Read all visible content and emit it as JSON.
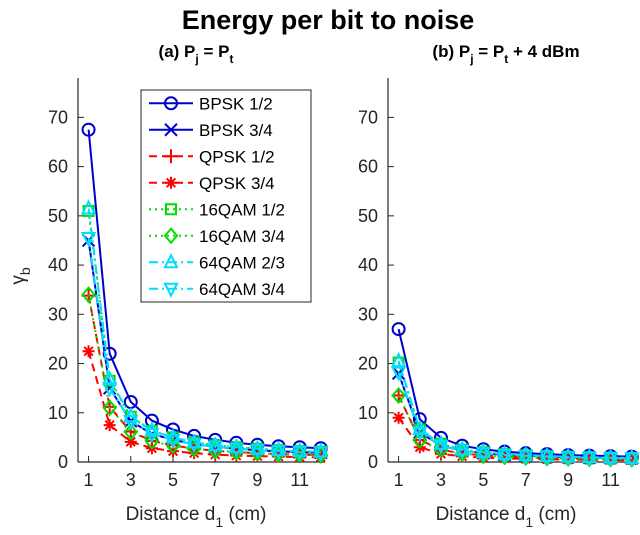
{
  "figure_title": "Energy per bit to noise",
  "chart_data": [
    {
      "type": "line",
      "title": "(a) P_j = P_t",
      "title_parts": {
        "a": "(a) P",
        "b": "j",
        "c": " = P",
        "d": "t"
      },
      "xlabel_parts": {
        "main": "Distance d",
        "sub": "1",
        "unit": " (cm)"
      },
      "ylabel_parts": {
        "main": "γ",
        "sub": "b"
      },
      "xlim": [
        0.5,
        12.2
      ],
      "ylim": [
        0,
        78
      ],
      "xticks": [
        1,
        3,
        5,
        7,
        9,
        11
      ],
      "yticks": [
        0,
        10,
        20,
        30,
        40,
        50,
        60,
        70
      ],
      "x": [
        1,
        2,
        3,
        4,
        5,
        6,
        7,
        8,
        9,
        10,
        11,
        12
      ],
      "legend_position": "top-right",
      "grid": false,
      "series": [
        {
          "name": "BPSK 1/2",
          "color": "#0000cc",
          "marker": "circle",
          "dash": "solid",
          "values": [
            67.5,
            22.0,
            12.2,
            8.4,
            6.6,
            5.3,
            4.5,
            3.9,
            3.5,
            3.2,
            3.0,
            2.8
          ]
        },
        {
          "name": "BPSK 3/4",
          "color": "#0000cc",
          "marker": "x",
          "dash": "solid",
          "values": [
            45.0,
            15.0,
            8.3,
            5.7,
            4.5,
            3.6,
            3.1,
            2.7,
            2.4,
            2.2,
            2.0,
            1.9
          ]
        },
        {
          "name": "QPSK 1/2",
          "color": "#ff0000",
          "marker": "plus",
          "dash": "dash",
          "values": [
            33.8,
            11.2,
            6.2,
            4.3,
            3.4,
            2.7,
            2.3,
            2.0,
            1.8,
            1.6,
            1.5,
            1.4
          ]
        },
        {
          "name": "QPSK 3/4",
          "color": "#ff0000",
          "marker": "asterisk",
          "dash": "dash",
          "values": [
            22.5,
            7.5,
            4.1,
            2.8,
            2.2,
            1.8,
            1.5,
            1.3,
            1.2,
            1.1,
            1.0,
            0.95
          ]
        },
        {
          "name": "16QAM 1/2",
          "color": "#00dd00",
          "marker": "square",
          "dash": "dot",
          "values": [
            51.0,
            16.5,
            9.2,
            6.3,
            5.0,
            4.0,
            3.4,
            3.0,
            2.7,
            2.4,
            2.2,
            2.1
          ]
        },
        {
          "name": "16QAM 3/4",
          "color": "#00dd00",
          "marker": "diamond",
          "dash": "dot",
          "values": [
            34.0,
            11.0,
            6.1,
            4.2,
            3.3,
            2.7,
            2.3,
            2.0,
            1.8,
            1.6,
            1.5,
            1.4
          ]
        },
        {
          "name": "64QAM 2/3",
          "color": "#00ddff",
          "marker": "triangle-up",
          "dash": "dashdot",
          "values": [
            51.5,
            16.8,
            9.3,
            6.4,
            5.0,
            4.0,
            3.4,
            3.0,
            2.7,
            2.4,
            2.2,
            2.1
          ]
        },
        {
          "name": "64QAM 3/4",
          "color": "#00ddff",
          "marker": "triangle-down",
          "dash": "dashdot",
          "values": [
            45.5,
            15.0,
            8.3,
            5.7,
            4.5,
            3.6,
            3.1,
            2.7,
            2.4,
            2.2,
            2.0,
            1.9
          ]
        }
      ]
    },
    {
      "type": "line",
      "title": "(b) P_j = P_t + 4 dBm",
      "title_parts": {
        "a": "(b) P",
        "b": "j",
        "c": " = P",
        "d": "t",
        "e": " + 4 dBm"
      },
      "xlabel_parts": {
        "main": "Distance d",
        "sub": "1",
        "unit": " (cm)"
      },
      "xlim": [
        0.5,
        12.2
      ],
      "ylim": [
        0,
        78
      ],
      "xticks": [
        1,
        3,
        5,
        7,
        9,
        11
      ],
      "yticks": [
        0,
        10,
        20,
        30,
        40,
        50,
        60,
        70
      ],
      "x": [
        1,
        2,
        3,
        4,
        5,
        6,
        7,
        8,
        9,
        10,
        11,
        12
      ],
      "grid": false,
      "series": [
        {
          "name": "BPSK 1/2",
          "color": "#0000cc",
          "marker": "circle",
          "dash": "solid",
          "values": [
            27.0,
            8.7,
            4.9,
            3.3,
            2.6,
            2.1,
            1.8,
            1.6,
            1.4,
            1.3,
            1.2,
            1.1
          ]
        },
        {
          "name": "BPSK 3/4",
          "color": "#0000cc",
          "marker": "x",
          "dash": "solid",
          "values": [
            18.0,
            6.0,
            3.3,
            2.3,
            1.8,
            1.45,
            1.25,
            1.1,
            0.97,
            0.88,
            0.8,
            0.75
          ]
        },
        {
          "name": "QPSK 1/2",
          "color": "#ff0000",
          "marker": "plus",
          "dash": "dash",
          "values": [
            13.5,
            4.5,
            2.5,
            1.7,
            1.35,
            1.1,
            0.94,
            0.82,
            0.73,
            0.66,
            0.6,
            0.56
          ]
        },
        {
          "name": "QPSK 3/4",
          "color": "#ff0000",
          "marker": "asterisk",
          "dash": "dash",
          "values": [
            9.0,
            3.0,
            1.65,
            1.15,
            0.9,
            0.72,
            0.62,
            0.54,
            0.48,
            0.44,
            0.4,
            0.37
          ]
        },
        {
          "name": "16QAM 1/2",
          "color": "#00dd00",
          "marker": "square",
          "dash": "dot",
          "values": [
            20.2,
            6.6,
            3.7,
            2.5,
            2.0,
            1.6,
            1.36,
            1.2,
            1.07,
            0.97,
            0.88,
            0.82
          ]
        },
        {
          "name": "16QAM 3/4",
          "color": "#00dd00",
          "marker": "diamond",
          "dash": "dot",
          "values": [
            13.5,
            4.4,
            2.45,
            1.7,
            1.33,
            1.07,
            0.92,
            0.8,
            0.72,
            0.65,
            0.59,
            0.55
          ]
        },
        {
          "name": "64QAM 2/3",
          "color": "#00ddff",
          "marker": "triangle-up",
          "dash": "dashdot",
          "values": [
            20.5,
            6.7,
            3.7,
            2.55,
            2.0,
            1.6,
            1.37,
            1.2,
            1.08,
            0.98,
            0.89,
            0.83
          ]
        },
        {
          "name": "64QAM 3/4",
          "color": "#00ddff",
          "marker": "triangle-down",
          "dash": "dashdot",
          "values": [
            18.2,
            6.0,
            3.3,
            2.3,
            1.8,
            1.45,
            1.25,
            1.1,
            0.97,
            0.88,
            0.8,
            0.75
          ]
        }
      ]
    }
  ]
}
